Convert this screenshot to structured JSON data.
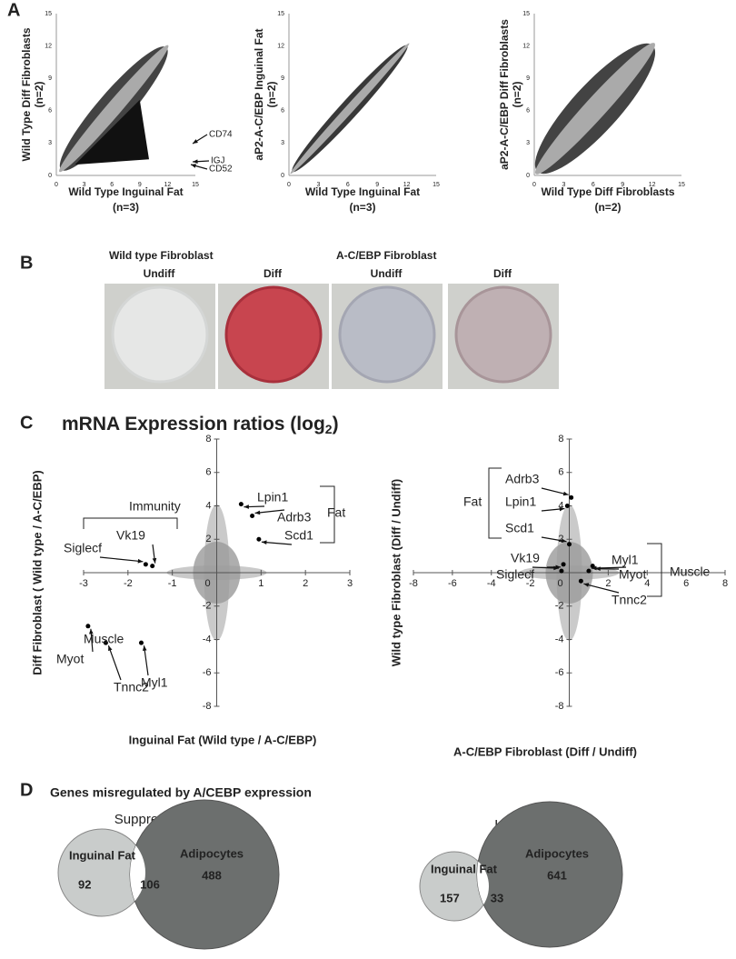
{
  "panel_a": {
    "label": "A",
    "ticks": [
      0,
      3,
      6,
      9,
      12,
      15
    ],
    "plots": [
      {
        "y_label": "Wild Type Diff Fibroblasts",
        "y_n": "(n=2)",
        "x_label": "Wild Type Inguinal Fat",
        "x_n": "(n=3)",
        "annotations": [
          "CD74",
          "IGJ",
          "CD52"
        ]
      },
      {
        "y_label": "aP2-A-C/EBP Inguinal Fat",
        "y_n": "(n=2)",
        "x_label": "Wild Type Inguinal Fat",
        "x_n": "(n=3)",
        "annotations": []
      },
      {
        "y_label": "aP2-A-C/EBP Diff Fibroblasts",
        "y_n": "(n=2)",
        "x_label": "Wild Type Diff Fibroblasts",
        "x_n": "(n=2)",
        "annotations": []
      }
    ]
  },
  "panel_b": {
    "label": "B",
    "groups": [
      {
        "title": "Wild type Fibroblast",
        "conditions": [
          "Undiff",
          "Diff"
        ]
      },
      {
        "title": "A-C/EBP Fibroblast",
        "conditions": [
          "Undiff",
          "Diff"
        ]
      }
    ]
  },
  "panel_c": {
    "label": "C",
    "title": "mRNA Expression ratios (log",
    "title_sub": "2",
    "title_end": ")",
    "plots": [
      {
        "x_label": "Inguinal Fat (Wild type / A-C/EBP)",
        "y_label": "Diff Fibroblast ( Wild type / A-C/EBP)",
        "xlim": [
          -3,
          3
        ],
        "ylim": [
          -8,
          8
        ],
        "xticks": [
          -3,
          -2,
          -1,
          0,
          1,
          2,
          3
        ],
        "yticks": [
          -8,
          -6,
          -4,
          -2,
          2,
          4,
          6,
          8
        ],
        "points": [
          {
            "label": "Lpin1",
            "x": 0.55,
            "y": 4.1
          },
          {
            "label": "Adrb3",
            "x": 0.8,
            "y": 3.4
          },
          {
            "label": "Scd1",
            "x": 0.95,
            "y": 2.0
          },
          {
            "label": "Vk19",
            "x": -1.45,
            "y": 0.4
          },
          {
            "label": "Siglecf",
            "x": -1.6,
            "y": 0.5
          },
          {
            "label": "Myot",
            "x": -2.9,
            "y": -3.2
          },
          {
            "label": "Tnnc2",
            "x": -2.5,
            "y": -4.2
          },
          {
            "label": "Myl1",
            "x": -1.7,
            "y": -4.2
          }
        ],
        "groups": [
          "Fat",
          "Immunity",
          "Muscle"
        ]
      },
      {
        "x_label": "A-C/EBP Fibroblast (Diff / Undiff)",
        "y_label": "Wild type Fibroblast (Diff / Undiff)",
        "xlim": [
          -8,
          8
        ],
        "ylim": [
          -8,
          8
        ],
        "xticks": [
          -8,
          -6,
          -4,
          -2,
          0,
          2,
          4,
          6,
          8
        ],
        "yticks": [
          -8,
          -6,
          -4,
          -2,
          2,
          4,
          6,
          8
        ],
        "points": [
          {
            "label": "Adrb3",
            "x": 0.1,
            "y": 4.5
          },
          {
            "label": "Lpin1",
            "x": -0.1,
            "y": 4.0
          },
          {
            "label": "Scd1",
            "x": 0.0,
            "y": 1.7
          },
          {
            "label": "Vk19",
            "x": -0.3,
            "y": 0.5
          },
          {
            "label": "Siglecf",
            "x": -0.4,
            "y": 0.1
          },
          {
            "label": "Myl1",
            "x": 1.2,
            "y": 0.4
          },
          {
            "label": "Myot",
            "x": 1.0,
            "y": 0.1
          },
          {
            "label": "Tnnc2",
            "x": 0.6,
            "y": -0.5
          }
        ],
        "groups": [
          "Fat",
          "Muscle"
        ]
      }
    ]
  },
  "panel_d": {
    "label": "D",
    "title": "Genes misregulated by A/CEBP expression",
    "venns": [
      {
        "title": "Suppressed (mRNA)",
        "small_label": "Inguinal Fat",
        "large_label": "Adipocytes",
        "small_only": "92",
        "overlap": "106",
        "large_only": "488"
      },
      {
        "title": "Induced (mRNA)",
        "small_label": "Inguinal Fat",
        "large_label": "Adipocytes",
        "small_only": "157",
        "overlap": "33",
        "large_only": "641"
      }
    ]
  }
}
